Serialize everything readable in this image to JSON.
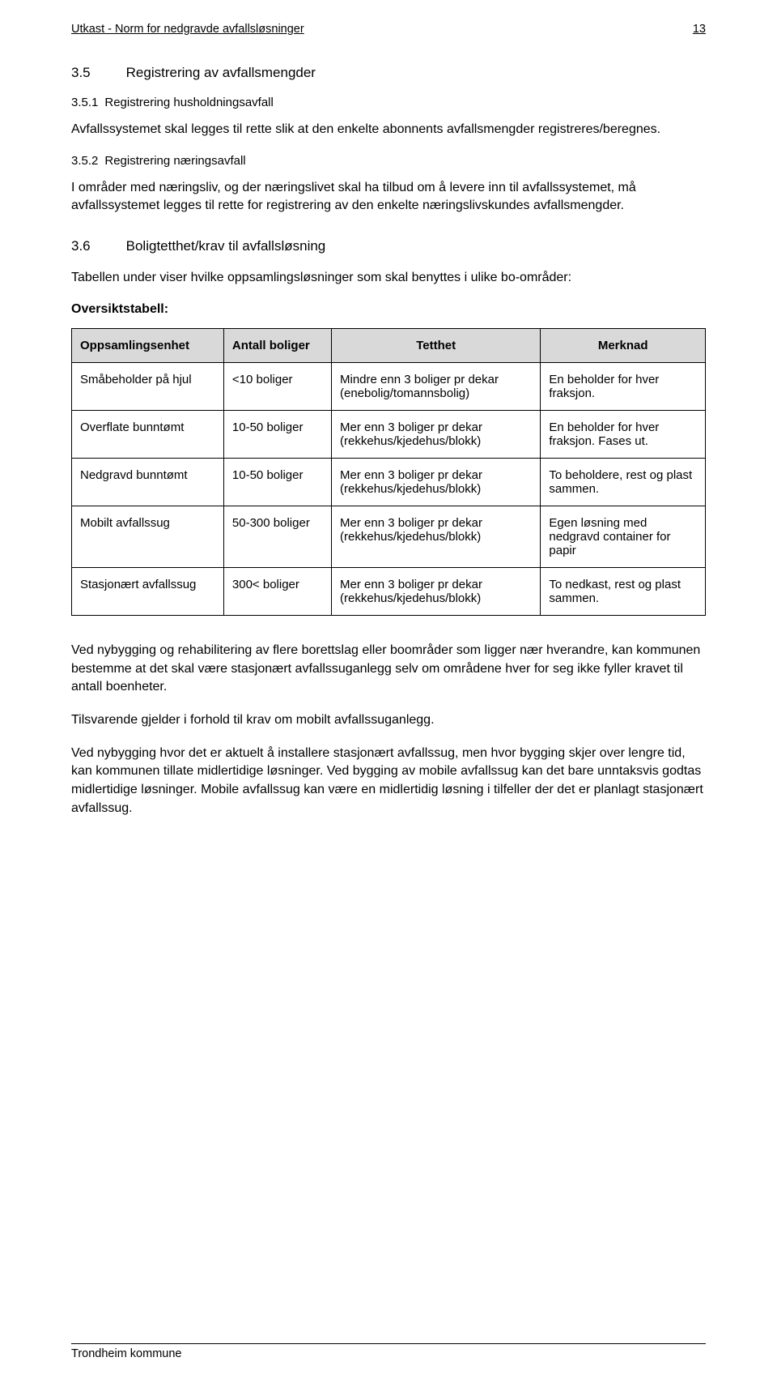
{
  "header": {
    "title": "Utkast - Norm for nedgravde avfallsløsninger",
    "page_number": "13"
  },
  "section35": {
    "number": "3.5",
    "title": "Registrering av avfallsmengder",
    "sub1_number": "3.5.1",
    "sub1_title": "Registrering husholdningsavfall",
    "sub1_text": "Avfallssystemet skal legges til rette slik at den enkelte abonnents avfallsmengder registreres/beregnes.",
    "sub2_number": "3.5.2",
    "sub2_title": "Registrering næringsavfall",
    "sub2_text": "I områder med næringsliv, og der næringslivet skal ha tilbud om å levere inn til avfallssystemet, må avfallssystemet legges til rette for registrering av den enkelte næringslivskundes avfallsmengder."
  },
  "section36": {
    "number": "3.6",
    "title": "Boligtetthet/krav til avfallsløsning",
    "intro": "Tabellen under viser hvilke oppsamlingsløsninger som skal benyttes i ulike bo-områder:",
    "table_label": "Oversiktstabell:"
  },
  "table": {
    "columns": [
      "Oppsamlingsenhet",
      "Antall boliger",
      "Tetthet",
      "Merknad"
    ],
    "header_bg": "#d9d9d9",
    "border_color": "#000000",
    "rows": [
      {
        "c1": "Småbeholder på hjul",
        "c2": "<10 boliger",
        "c3": "Mindre enn 3 boliger pr dekar (enebolig/tomannsbolig)",
        "c4": "En beholder for hver fraksjon."
      },
      {
        "c1": "Overflate bunntømt",
        "c2": "10-50 boliger",
        "c3": "Mer enn 3 boliger pr dekar (rekkehus/kjedehus/blokk)",
        "c4": "En beholder for hver fraksjon. Fases ut."
      },
      {
        "c1": "Nedgravd bunntømt",
        "c2": "10-50 boliger",
        "c3": "Mer enn 3 boliger pr dekar (rekkehus/kjedehus/blokk)",
        "c4": "To beholdere, rest og plast sammen."
      },
      {
        "c1": "Mobilt avfallssug",
        "c2": "50-300 boliger",
        "c3": "Mer enn 3 boliger pr dekar (rekkehus/kjedehus/blokk)",
        "c4": "Egen løsning med nedgravd container for papir"
      },
      {
        "c1": "Stasjonært avfallssug",
        "c2": "300< boliger",
        "c3": "Mer enn 3 boliger pr dekar (rekkehus/kjedehus/blokk)",
        "c4": "To nedkast, rest og plast sammen."
      }
    ]
  },
  "closing": {
    "p1": "Ved nybygging og rehabilitering av flere borettslag eller boområder som ligger nær hverandre, kan kommunen bestemme at det skal være stasjonært avfallssuganlegg selv om områdene hver for seg ikke fyller kravet til antall boenheter.",
    "p2": "Tilsvarende gjelder i forhold til krav om mobilt avfallssuganlegg.",
    "p3": "Ved nybygging hvor det er aktuelt å installere stasjonært avfallssug, men hvor bygging skjer over lengre tid, kan kommunen tillate midlertidige løsninger. Ved bygging av mobile avfallssug kan det bare unntaksvis godtas midlertidige løsninger. Mobile avfallssug kan være en midlertidig løsning i tilfeller der det er planlagt stasjonært avfallssug."
  },
  "footer": {
    "text": "Trondheim kommune"
  },
  "style": {
    "page_bg": "#ffffff",
    "text_color": "#000000",
    "body_fontsize": 16,
    "heading_fontsize": 17,
    "table_fontsize": 15,
    "header_fontsize": 14.5,
    "font_family": "Arial"
  }
}
